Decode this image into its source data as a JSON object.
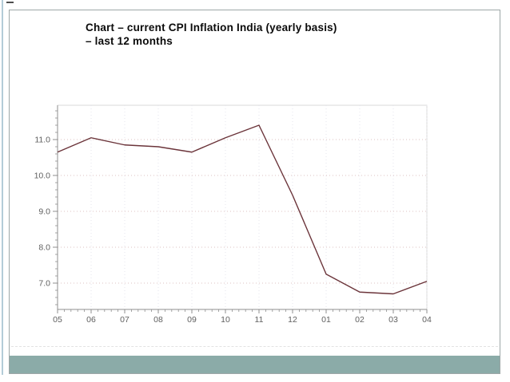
{
  "slide": {
    "title_line1": "Chart – current CPI Inflation India (yearly basis)",
    "title_line2": "– last 12 months"
  },
  "colors": {
    "accent_band": "#8baba8",
    "edge_line": "#b3ccd8",
    "line": "#6b343a",
    "grid_h": "#dcc2c2",
    "grid_v": "#e4e4ec",
    "axis": "#8f8f8f",
    "tick_label": "#606060",
    "frame": "#d8d8d8",
    "slide_border": "#9da7a7"
  },
  "chart_data": {
    "type": "line",
    "title": "current CPI inflation India (yearly basis) – last 12 months",
    "series_name": "CPI inflation % (yearly basis)",
    "categories": [
      "05",
      "06",
      "07",
      "08",
      "09",
      "10",
      "11",
      "12",
      "01",
      "02",
      "03",
      "04"
    ],
    "values": [
      10.65,
      11.05,
      10.85,
      10.8,
      10.65,
      11.05,
      11.4,
      9.45,
      7.25,
      6.75,
      6.7,
      7.05
    ],
    "xlabel": "",
    "ylabel": "",
    "y_ticks": [
      7.0,
      8.0,
      9.0,
      10.0,
      11.0
    ],
    "y_tick_labels": [
      "7.0",
      "8.0",
      "9.0",
      "10.0",
      "11.0"
    ],
    "ylim": [
      6.25,
      11.95
    ],
    "grid": true,
    "gridline_style": "dotted",
    "minor_y_step": 0.2,
    "x_minor_per_interval": 4,
    "legend": "none"
  }
}
